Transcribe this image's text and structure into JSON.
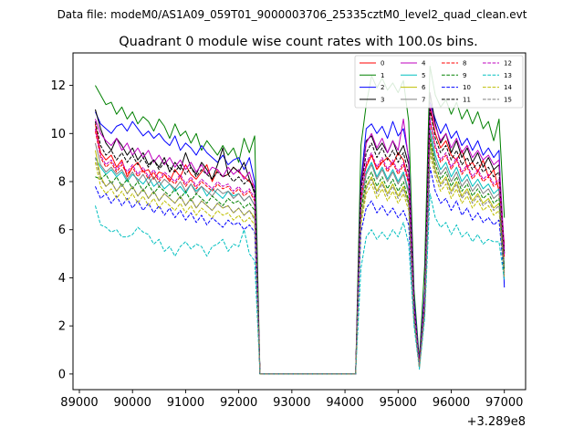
{
  "chart_data": {
    "type": "line",
    "suptitle": "Data file: modeM0/AS1A09_059T01_9000003706_25335cztM0_level2_quad_clean.evt",
    "title": "Quadrant 0 module wise count rates with 100.0s bins.",
    "xlabel": "",
    "ylabel": "",
    "offset_text": "+3.289e8",
    "xlim": [
      88880,
      97400
    ],
    "ylim": [
      -0.65,
      13.35
    ],
    "x_ticks": [
      89000,
      90000,
      91000,
      92000,
      93000,
      94000,
      95000,
      96000,
      97000
    ],
    "x_tick_labels": [
      "89000",
      "90000",
      "91000",
      "92000",
      "93000",
      "94000",
      "95000",
      "96000",
      "97000"
    ],
    "y_ticks": [
      0,
      2,
      4,
      6,
      8,
      10,
      12
    ],
    "y_tick_labels": [
      "0",
      "2",
      "4",
      "6",
      "8",
      "10",
      "12"
    ],
    "legend": {
      "location": "upper right",
      "ncol": 4
    },
    "segments": [
      {
        "start": 89300,
        "end": 92300,
        "step": 100
      },
      {
        "start": 92400,
        "end": 94200,
        "step": 100,
        "flat": 0
      },
      {
        "start": 94300,
        "end": 97000,
        "step": 100
      }
    ],
    "series": [
      {
        "name": "0",
        "color": "#ff0000",
        "dash": "solid",
        "seg1": [
          10.4,
          9.2,
          8.9,
          9.1,
          8.6,
          8.9,
          8.2,
          8.6,
          8.8,
          8.4,
          8.5,
          8.1,
          8.4,
          8.3,
          8.0,
          8.5,
          8.2,
          8.7,
          8.3,
          8.1,
          8.4,
          8.7,
          8.0,
          8.5,
          8.2,
          8.3,
          8.6,
          8.4,
          8.2,
          8.0,
          7.8
        ],
        "seg2": [
          8.0,
          8.6,
          9.1,
          8.5,
          8.8,
          9.0,
          8.7,
          9.2,
          8.9,
          8.0,
          3.0,
          0.5,
          3.0,
          11.1,
          10.0,
          9.4,
          9.7,
          9.1,
          8.9,
          9.3,
          8.6,
          8.8,
          8.4,
          8.9,
          8.2,
          8.5,
          7.6,
          5.4
        ]
      },
      {
        "name": "1",
        "color": "#008000",
        "dash": "solid",
        "seg1": [
          12.0,
          11.6,
          11.2,
          11.3,
          10.8,
          11.1,
          10.6,
          10.9,
          10.4,
          10.7,
          10.5,
          10.1,
          10.6,
          10.3,
          9.8,
          10.4,
          9.9,
          10.1,
          9.6,
          10.0,
          9.3,
          9.7,
          9.4,
          9.1,
          9.5,
          9.1,
          9.4,
          8.8,
          9.8,
          9.2,
          9.9
        ],
        "seg2": [
          9.5,
          11.2,
          12.4,
          11.9,
          12.3,
          11.8,
          12.1,
          11.7,
          12.2,
          10.5,
          3.5,
          0.6,
          4.5,
          12.8,
          11.6,
          11.1,
          11.4,
          10.8,
          11.3,
          10.6,
          11.0,
          10.4,
          10.9,
          10.2,
          10.5,
          9.7,
          10.6,
          6.5
        ]
      },
      {
        "name": "2",
        "color": "#0000ff",
        "dash": "solid",
        "seg1": [
          10.9,
          10.4,
          10.2,
          10.0,
          10.3,
          10.4,
          10.1,
          10.5,
          10.2,
          9.9,
          10.1,
          9.8,
          10.0,
          9.7,
          9.5,
          9.9,
          9.3,
          9.6,
          9.4,
          9.1,
          9.5,
          9.2,
          9.0,
          8.8,
          9.1,
          8.7,
          8.9,
          9.0,
          8.5,
          9.0,
          8.0
        ],
        "seg2": [
          8.0,
          10.2,
          10.4,
          10.0,
          10.3,
          9.8,
          10.5,
          9.9,
          10.2,
          9.0,
          3.1,
          0.5,
          3.5,
          11.3,
          10.6,
          10.0,
          10.4,
          9.8,
          10.1,
          9.5,
          9.8,
          9.3,
          9.7,
          9.1,
          9.4,
          9.0,
          9.3,
          3.6
        ]
      },
      {
        "name": "3",
        "color": "#000000",
        "dash": "solid",
        "seg1": [
          11.0,
          10.2,
          9.6,
          9.3,
          9.8,
          9.5,
          9.1,
          9.4,
          8.9,
          9.2,
          8.7,
          8.9,
          8.6,
          9.0,
          8.4,
          8.8,
          8.5,
          9.2,
          8.6,
          8.3,
          8.8,
          8.5,
          8.1,
          8.7,
          9.4,
          8.3,
          8.6,
          8.4,
          8.8,
          8.1,
          7.5
        ],
        "seg2": [
          7.8,
          9.7,
          9.9,
          9.3,
          9.6,
          9.2,
          9.7,
          9.1,
          9.5,
          8.7,
          2.8,
          0.4,
          3.2,
          11.7,
          10.4,
          9.6,
          10.0,
          9.2,
          9.7,
          9.0,
          9.4,
          8.8,
          9.2,
          8.6,
          9.0,
          8.5,
          8.7,
          5.0
        ]
      },
      {
        "name": "4",
        "color": "#bf00bf",
        "dash": "solid",
        "seg1": [
          10.6,
          10.0,
          9.7,
          9.5,
          9.8,
          9.3,
          9.6,
          9.1,
          9.4,
          9.0,
          9.3,
          8.8,
          9.1,
          8.7,
          9.0,
          8.6,
          8.9,
          8.5,
          8.8,
          8.4,
          8.7,
          8.3,
          8.6,
          8.5,
          8.2,
          8.6,
          8.3,
          8.5,
          8.1,
          8.4,
          7.7
        ],
        "seg2": [
          7.7,
          9.6,
          10.0,
          9.4,
          9.8,
          9.2,
          9.7,
          9.3,
          10.6,
          8.9,
          2.9,
          0.4,
          3.3,
          11.2,
          10.3,
          9.7,
          10.0,
          9.4,
          9.8,
          9.2,
          9.5,
          9.0,
          9.3,
          8.9,
          9.1,
          8.7,
          8.9,
          5.2
        ]
      },
      {
        "name": "5",
        "color": "#00bfbf",
        "dash": "solid",
        "seg1": [
          9.0,
          8.6,
          8.3,
          8.5,
          8.2,
          8.4,
          8.0,
          8.3,
          8.1,
          7.9,
          8.2,
          7.8,
          8.0,
          7.7,
          7.9,
          7.6,
          7.8,
          7.5,
          7.9,
          7.6,
          7.8,
          7.4,
          7.7,
          7.5,
          7.3,
          7.6,
          7.4,
          7.5,
          7.2,
          7.4,
          7.0
        ],
        "seg2": [
          7.0,
          8.4,
          8.8,
          8.2,
          8.6,
          8.1,
          8.5,
          8.0,
          8.4,
          7.6,
          2.6,
          0.3,
          2.9,
          10.2,
          9.1,
          8.5,
          8.8,
          8.2,
          8.6,
          8.0,
          8.3,
          7.8,
          8.1,
          7.7,
          7.9,
          7.5,
          7.7,
          4.4
        ]
      },
      {
        "name": "6",
        "color": "#bfbf00",
        "dash": "solid",
        "seg1": [
          9.3,
          8.2,
          7.8,
          8.0,
          7.6,
          7.9,
          7.5,
          7.8,
          7.4,
          7.7,
          7.3,
          7.6,
          7.2,
          7.5,
          7.3,
          7.1,
          7.4,
          7.0,
          7.3,
          6.9,
          7.2,
          7.0,
          6.8,
          7.1,
          6.9,
          7.0,
          6.7,
          6.9,
          6.6,
          6.8,
          6.5
        ],
        "seg2": [
          6.5,
          7.8,
          8.2,
          7.6,
          8.0,
          7.5,
          7.9,
          7.4,
          7.8,
          7.1,
          2.4,
          0.3,
          2.7,
          9.6,
          8.5,
          7.9,
          8.2,
          7.6,
          8.0,
          7.4,
          7.7,
          7.2,
          7.5,
          7.1,
          7.3,
          6.9,
          7.1,
          4.2
        ]
      },
      {
        "name": "7",
        "color": "#7f7f7f",
        "dash": "solid",
        "seg1": [
          9.6,
          8.7,
          8.4,
          8.6,
          8.3,
          8.5,
          8.1,
          8.4,
          8.0,
          8.3,
          7.9,
          8.2,
          7.8,
          8.1,
          7.9,
          7.7,
          8.0,
          7.6,
          7.9,
          7.5,
          7.8,
          7.6,
          7.4,
          7.7,
          7.5,
          7.6,
          7.3,
          7.5,
          7.2,
          7.4,
          7.0
        ],
        "seg2": [
          7.0,
          8.3,
          8.7,
          8.1,
          8.5,
          8.0,
          8.4,
          7.9,
          8.3,
          7.5,
          2.6,
          0.3,
          2.9,
          10.0,
          8.9,
          8.3,
          8.6,
          8.0,
          8.4,
          7.8,
          8.1,
          7.6,
          7.9,
          7.5,
          7.7,
          7.3,
          7.5,
          4.5
        ]
      },
      {
        "name": "8",
        "color": "#ff0000",
        "dash": "dashed",
        "seg1": [
          10.1,
          9.0,
          8.6,
          8.8,
          8.4,
          8.7,
          8.3,
          8.6,
          8.2,
          8.5,
          8.1,
          8.4,
          8.0,
          8.3,
          8.1,
          7.9,
          8.2,
          7.8,
          8.1,
          7.7,
          8.0,
          7.8,
          7.6,
          7.9,
          7.7,
          7.8,
          7.5,
          7.7,
          7.4,
          7.6,
          7.2
        ],
        "seg2": [
          7.2,
          8.7,
          9.1,
          8.5,
          8.9,
          8.4,
          8.8,
          8.3,
          8.7,
          7.9,
          2.7,
          0.4,
          3.0,
          10.5,
          9.4,
          8.8,
          9.1,
          8.5,
          8.9,
          8.3,
          8.6,
          8.1,
          8.4,
          8.0,
          8.2,
          7.8,
          8.0,
          4.8
        ]
      },
      {
        "name": "9",
        "color": "#008000",
        "dash": "dashed",
        "seg1": [
          8.2,
          8.1,
          8.3,
          7.9,
          8.2,
          7.8,
          8.1,
          7.7,
          8.0,
          7.6,
          7.9,
          7.5,
          7.8,
          7.6,
          7.4,
          7.7,
          7.3,
          7.6,
          7.2,
          7.5,
          7.3,
          7.1,
          7.4,
          7.2,
          7.0,
          7.3,
          7.1,
          7.2,
          6.9,
          7.1,
          6.8
        ],
        "seg2": [
          6.8,
          8.0,
          8.4,
          7.8,
          8.2,
          7.7,
          8.1,
          7.6,
          8.0,
          7.2,
          2.5,
          0.3,
          2.8,
          9.8,
          8.7,
          8.1,
          8.4,
          7.8,
          8.2,
          7.6,
          7.9,
          7.4,
          7.7,
          7.3,
          7.5,
          7.1,
          7.3,
          4.3
        ]
      },
      {
        "name": "10",
        "color": "#0000ff",
        "dash": "dashed",
        "seg1": [
          7.8,
          7.3,
          7.5,
          7.1,
          7.4,
          7.0,
          7.3,
          6.9,
          7.2,
          6.8,
          7.1,
          6.7,
          7.0,
          6.6,
          6.9,
          6.5,
          6.8,
          6.4,
          6.7,
          6.3,
          6.6,
          6.2,
          6.5,
          6.3,
          6.1,
          6.4,
          6.2,
          6.3,
          6.0,
          6.2,
          5.9
        ],
        "seg2": [
          5.9,
          6.9,
          7.2,
          6.7,
          7.0,
          6.6,
          6.9,
          6.5,
          6.8,
          6.2,
          2.2,
          0.3,
          2.5,
          8.6,
          7.6,
          7.1,
          7.3,
          6.8,
          7.2,
          6.6,
          6.9,
          6.4,
          6.7,
          6.3,
          6.5,
          6.2,
          6.4,
          3.9
        ]
      },
      {
        "name": "11",
        "color": "#000000",
        "dash": "dashed",
        "seg1": [
          10.5,
          9.5,
          9.1,
          9.3,
          8.9,
          9.2,
          8.8,
          9.1,
          8.7,
          9.0,
          8.6,
          8.9,
          8.5,
          8.8,
          8.6,
          8.4,
          8.7,
          8.3,
          8.6,
          8.2,
          8.5,
          8.3,
          8.1,
          8.4,
          8.2,
          8.3,
          8.0,
          8.2,
          7.9,
          8.1,
          7.6
        ],
        "seg2": [
          7.6,
          9.2,
          9.6,
          9.0,
          9.4,
          8.9,
          9.3,
          8.8,
          9.2,
          8.3,
          2.8,
          0.4,
          3.1,
          11.0,
          9.8,
          9.2,
          9.5,
          8.9,
          9.3,
          8.7,
          9.0,
          8.5,
          8.8,
          8.4,
          8.6,
          8.2,
          8.4,
          5.0
        ]
      },
      {
        "name": "12",
        "color": "#bf00bf",
        "dash": "dashed",
        "seg1": [
          10.2,
          9.1,
          8.7,
          8.9,
          8.5,
          8.8,
          8.4,
          8.7,
          8.3,
          8.6,
          8.2,
          8.5,
          8.1,
          8.4,
          8.2,
          8.0,
          8.3,
          7.9,
          8.2,
          7.8,
          8.1,
          7.9,
          7.7,
          8.0,
          7.8,
          7.9,
          7.6,
          7.8,
          7.5,
          7.7,
          7.3
        ],
        "seg2": [
          7.3,
          8.8,
          9.2,
          8.6,
          9.0,
          8.5,
          8.9,
          8.4,
          8.8,
          8.0,
          2.7,
          0.4,
          3.0,
          10.6,
          9.5,
          8.9,
          9.2,
          8.6,
          9.0,
          8.4,
          8.7,
          8.2,
          8.5,
          8.1,
          8.3,
          7.9,
          8.1,
          4.9
        ]
      },
      {
        "name": "13",
        "color": "#00bfbf",
        "dash": "dashed",
        "seg1": [
          7.0,
          6.2,
          6.1,
          5.9,
          6.0,
          5.7,
          5.7,
          5.8,
          6.1,
          5.9,
          5.8,
          5.4,
          5.6,
          5.1,
          5.3,
          4.9,
          5.3,
          5.5,
          5.2,
          5.4,
          5.3,
          4.9,
          5.3,
          5.4,
          5.6,
          5.1,
          5.4,
          5.3,
          6.0,
          5.0,
          4.7
        ],
        "seg2": [
          4.4,
          5.7,
          6.0,
          5.6,
          5.9,
          5.6,
          6.0,
          5.7,
          6.3,
          5.4,
          2.0,
          0.2,
          2.3,
          7.5,
          6.5,
          6.1,
          6.3,
          5.8,
          6.2,
          5.7,
          5.9,
          5.5,
          5.8,
          5.4,
          5.6,
          5.5,
          5.5,
          3.9
        ]
      },
      {
        "name": "14",
        "color": "#bfbf00",
        "dash": "dashed",
        "seg1": [
          8.8,
          7.8,
          7.5,
          7.7,
          7.3,
          7.6,
          7.2,
          7.5,
          7.1,
          7.4,
          7.0,
          7.3,
          6.9,
          7.2,
          7.0,
          6.8,
          7.1,
          6.7,
          7.0,
          6.6,
          6.9,
          6.7,
          6.5,
          6.8,
          6.6,
          6.7,
          6.4,
          6.6,
          6.3,
          6.5,
          6.2
        ],
        "seg2": [
          6.2,
          7.5,
          7.9,
          7.3,
          7.7,
          7.2,
          7.6,
          7.1,
          7.5,
          6.8,
          2.3,
          0.3,
          2.6,
          9.2,
          8.2,
          7.6,
          7.9,
          7.3,
          7.7,
          7.1,
          7.4,
          6.9,
          7.2,
          6.8,
          7.0,
          6.6,
          6.8,
          4.0
        ]
      },
      {
        "name": "15",
        "color": "#7f7f7f",
        "dash": "dashed",
        "seg1": [
          9.0,
          8.1,
          7.8,
          8.0,
          7.6,
          7.9,
          7.5,
          7.8,
          7.4,
          7.7,
          7.3,
          7.6,
          7.2,
          7.5,
          7.3,
          7.1,
          7.4,
          7.0,
          7.3,
          6.9,
          7.2,
          7.0,
          6.8,
          7.1,
          6.9,
          7.0,
          6.7,
          6.9,
          6.6,
          6.8,
          6.4
        ],
        "seg2": [
          6.4,
          7.7,
          8.1,
          7.5,
          7.9,
          7.4,
          7.8,
          7.3,
          7.7,
          7.0,
          2.4,
          0.3,
          2.7,
          9.4,
          8.4,
          7.8,
          8.1,
          7.5,
          7.9,
          7.3,
          7.6,
          7.1,
          7.4,
          7.0,
          7.2,
          6.8,
          7.0,
          4.1
        ]
      }
    ]
  }
}
